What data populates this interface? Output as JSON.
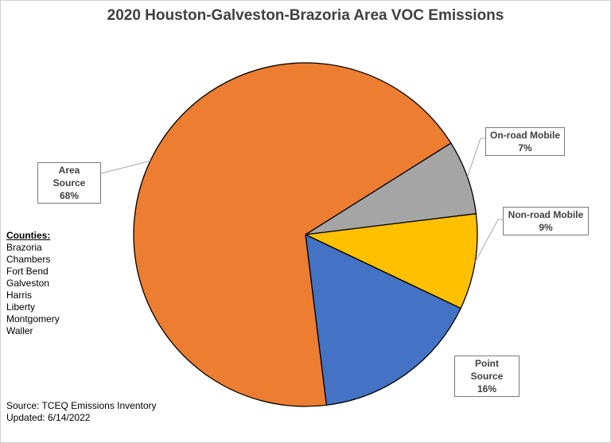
{
  "chart_data": {
    "type": "pie",
    "title": "2020 Houston-Galveston-Brazoria Area VOC Emissions",
    "slices": [
      {
        "label": "On-road Mobile",
        "value": 7,
        "pct_label": "7%",
        "color": "#a5a5a5"
      },
      {
        "label": "Non-road Mobile",
        "value": 9,
        "pct_label": "9%",
        "color": "#ffc000"
      },
      {
        "label": "Point Source",
        "value": 16,
        "pct_label": "16%",
        "color": "#4472c4"
      },
      {
        "label": "Area Source",
        "value": 68,
        "pct_label": "68%",
        "color": "#ed7d31"
      }
    ]
  },
  "counties": {
    "heading": "Counties:",
    "list": [
      "Brazoria",
      "Chambers",
      "Fort Bend",
      "Galveston",
      "Harris",
      "Liberty",
      "Montgomery",
      "Waller"
    ]
  },
  "footer": {
    "source": "Source: TCEQ Emissions Inventory",
    "updated": "Updated: 6/14/2022"
  }
}
